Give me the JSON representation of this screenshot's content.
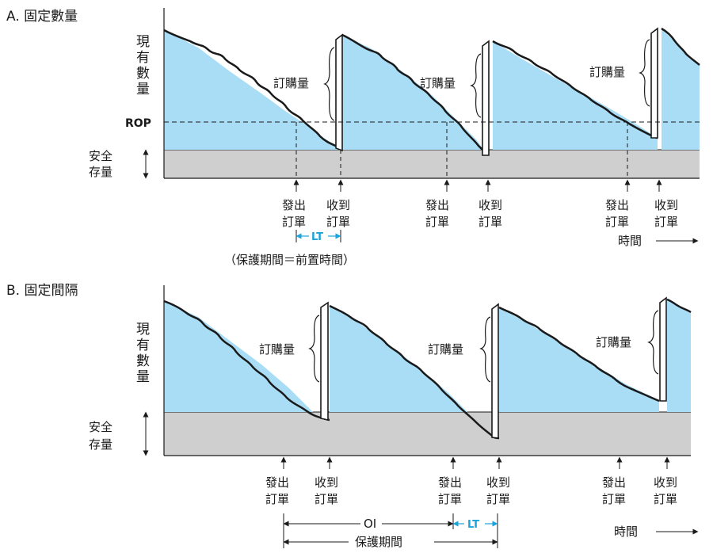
{
  "panel_a": {
    "title": "A. 固定數量",
    "y_label": [
      "現",
      "有",
      "數",
      "量"
    ],
    "safety_label": [
      "安全",
      "存量"
    ],
    "rop_label": "ROP",
    "order_qty_label": "訂購量",
    "place_order": [
      "發出",
      "訂單"
    ],
    "receive_order": [
      "收到",
      "訂單"
    ],
    "lt_label": "LT",
    "time_label": "時間",
    "caption": "（保護期間＝前置時間）"
  },
  "panel_b": {
    "title": "B. 固定間隔",
    "y_label": [
      "現",
      "有",
      "數",
      "量"
    ],
    "safety_label": [
      "安全",
      "存量"
    ],
    "order_qty_label": "訂購量",
    "place_order": [
      "發出",
      "訂單"
    ],
    "receive_order": [
      "收到",
      "訂單"
    ],
    "oi_label": "OI",
    "lt_label": "LT",
    "time_label": "時間",
    "protection_label": "保護期間"
  },
  "colors": {
    "inventory_fill": "#a9ddf5",
    "safety_fill": "#cfcfcf",
    "lt_accent": "#1aa3dc",
    "line": "#1a1a1a"
  }
}
